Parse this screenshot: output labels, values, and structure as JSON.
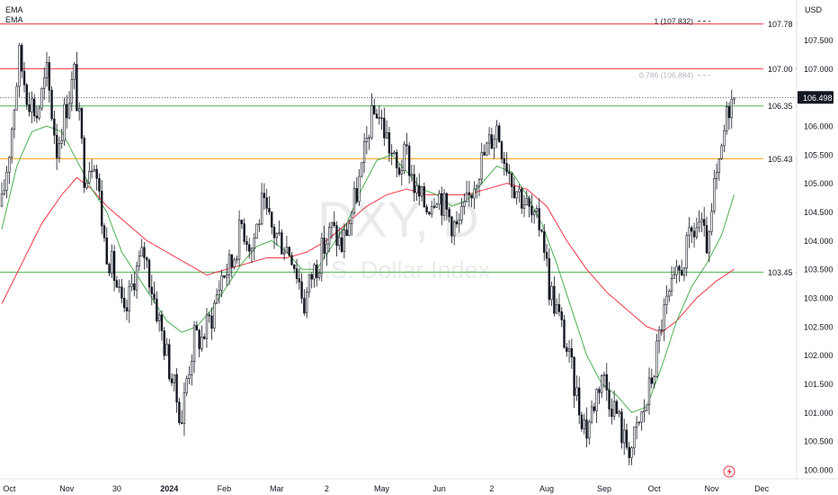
{
  "legend": {
    "ema_fast": "EMA",
    "ema_slow": "EMA"
  },
  "currency": "USD",
  "watermark": {
    "symbol": "DXY, D",
    "name": "U.S. Dollar Index"
  },
  "icon": "lightning-bolt-icon",
  "colors": {
    "candle": "#131722",
    "ema_fast": "#4caf50",
    "ema_slow": "#f23645",
    "red_level": "#f23645",
    "green_level": "#4caf50",
    "orange_level": "#ff9800",
    "fib_text": "#b2b5be",
    "price_tag_bg": "#131722"
  },
  "chart_data": {
    "type": "candlestick",
    "title": "",
    "ylim": [
      99.86,
      108.12
    ],
    "y_ticks": [
      "100.000",
      "100.500",
      "101.000",
      "101.500",
      "102.000",
      "102.500",
      "103.000",
      "103.500",
      "104.000",
      "104.500",
      "105.000",
      "105.500",
      "106.000",
      "106.500",
      "107.000",
      "107.500"
    ],
    "x_ticks": [
      {
        "label": "Oct",
        "idx": 3
      },
      {
        "label": "Nov",
        "idx": 26
      },
      {
        "label": "30",
        "idx": 46
      },
      {
        "label": "2024",
        "idx": 67
      },
      {
        "label": "Feb",
        "idx": 89
      },
      {
        "label": "Mar",
        "idx": 110
      },
      {
        "label": "2",
        "idx": 130
      },
      {
        "label": "May",
        "idx": 152
      },
      {
        "label": "Jun",
        "idx": 175
      },
      {
        "label": "2",
        "idx": 196
      },
      {
        "label": "Aug",
        "idx": 218
      },
      {
        "label": "Sep",
        "idx": 241
      },
      {
        "label": "Oct",
        "idx": 261
      },
      {
        "label": "Nov",
        "idx": 284
      },
      {
        "label": "Dec",
        "idx": 304
      }
    ],
    "last_price": "106.498",
    "levels": [
      {
        "label": "107.78",
        "value": 107.78,
        "color": "red"
      },
      {
        "label": "107.00",
        "value": 107.0,
        "color": "red"
      },
      {
        "label": "106.35",
        "value": 106.35,
        "color": "green"
      },
      {
        "label": "105.43",
        "value": 105.43,
        "color": "orange"
      },
      {
        "label": "103.45",
        "value": 103.45,
        "color": "green"
      }
    ],
    "fib_labels": [
      {
        "text": "1 (107.832)",
        "value": 107.832
      },
      {
        "text": "0.786 (106.884)",
        "value": 106.884
      }
    ],
    "anchors": [
      [
        0,
        104.6
      ],
      [
        3,
        105.6
      ],
      [
        7,
        107.2
      ],
      [
        10,
        106.6
      ],
      [
        14,
        106.2
      ],
      [
        18,
        106.9
      ],
      [
        22,
        105.6
      ],
      [
        25,
        106.2
      ],
      [
        29,
        106.9
      ],
      [
        33,
        105.2
      ],
      [
        37,
        105.5
      ],
      [
        41,
        104.0
      ],
      [
        45,
        103.4
      ],
      [
        49,
        102.6
      ],
      [
        53,
        103.4
      ],
      [
        57,
        103.8
      ],
      [
        61,
        103.0
      ],
      [
        65,
        102.2
      ],
      [
        69,
        101.4
      ],
      [
        72,
        100.9
      ],
      [
        74,
        101.6
      ],
      [
        77,
        102.3
      ],
      [
        80,
        102.3
      ],
      [
        84,
        102.7
      ],
      [
        88,
        103.4
      ],
      [
        92,
        103.6
      ],
      [
        96,
        104.3
      ],
      [
        100,
        103.9
      ],
      [
        104,
        104.6
      ],
      [
        108,
        104.2
      ],
      [
        112,
        104.0
      ],
      [
        116,
        103.8
      ],
      [
        119,
        103.3
      ],
      [
        121,
        102.9
      ],
      [
        124,
        103.4
      ],
      [
        128,
        103.8
      ],
      [
        132,
        104.2
      ],
      [
        136,
        103.9
      ],
      [
        140,
        104.5
      ],
      [
        144,
        105.2
      ],
      [
        147,
        106.0
      ],
      [
        150,
        106.3
      ],
      [
        154,
        105.8
      ],
      [
        158,
        105.2
      ],
      [
        162,
        105.5
      ],
      [
        166,
        104.8
      ],
      [
        170,
        104.6
      ],
      [
        174,
        104.9
      ],
      [
        178,
        104.5
      ],
      [
        182,
        104.2
      ],
      [
        186,
        104.6
      ],
      [
        190,
        105.2
      ],
      [
        194,
        105.6
      ],
      [
        198,
        106.0
      ],
      [
        201,
        105.5
      ],
      [
        205,
        105.0
      ],
      [
        209,
        104.7
      ],
      [
        213,
        104.3
      ],
      [
        216,
        104.3
      ],
      [
        219,
        103.2
      ],
      [
        222,
        102.8
      ],
      [
        225,
        102.3
      ],
      [
        228,
        101.7
      ],
      [
        231,
        101.1
      ],
      [
        234,
        100.7
      ],
      [
        237,
        101.2
      ],
      [
        240,
        101.7
      ],
      [
        243,
        101.3
      ],
      [
        246,
        101.0
      ],
      [
        249,
        100.5
      ],
      [
        252,
        100.4
      ],
      [
        255,
        100.8
      ],
      [
        258,
        101.2
      ],
      [
        261,
        101.8
      ],
      [
        264,
        102.6
      ],
      [
        267,
        103.0
      ],
      [
        270,
        103.3
      ],
      [
        273,
        103.7
      ],
      [
        276,
        104.1
      ],
      [
        279,
        104.3
      ],
      [
        281,
        104.0
      ],
      [
        283,
        103.9
      ],
      [
        285,
        104.9
      ],
      [
        287,
        105.2
      ],
      [
        289,
        105.9
      ],
      [
        291,
        106.4
      ],
      [
        293,
        106.5
      ]
    ],
    "ema_fast_anchors": [
      [
        0,
        104.2
      ],
      [
        6,
        105.3
      ],
      [
        12,
        105.9
      ],
      [
        18,
        106.0
      ],
      [
        24,
        105.9
      ],
      [
        30,
        105.4
      ],
      [
        36,
        104.9
      ],
      [
        42,
        104.5
      ],
      [
        48,
        103.8
      ],
      [
        54,
        103.4
      ],
      [
        60,
        103.0
      ],
      [
        66,
        102.6
      ],
      [
        72,
        102.4
      ],
      [
        78,
        102.5
      ],
      [
        84,
        102.8
      ],
      [
        90,
        103.2
      ],
      [
        96,
        103.6
      ],
      [
        102,
        103.9
      ],
      [
        108,
        104.0
      ],
      [
        114,
        103.8
      ],
      [
        120,
        103.5
      ],
      [
        126,
        103.5
      ],
      [
        132,
        103.9
      ],
      [
        138,
        104.3
      ],
      [
        144,
        104.9
      ],
      [
        150,
        105.4
      ],
      [
        156,
        105.5
      ],
      [
        162,
        105.2
      ],
      [
        168,
        104.9
      ],
      [
        174,
        104.8
      ],
      [
        180,
        104.6
      ],
      [
        186,
        104.7
      ],
      [
        192,
        105.0
      ],
      [
        198,
        105.3
      ],
      [
        204,
        105.2
      ],
      [
        210,
        104.8
      ],
      [
        216,
        104.3
      ],
      [
        222,
        103.6
      ],
      [
        228,
        102.8
      ],
      [
        234,
        102.0
      ],
      [
        240,
        101.5
      ],
      [
        246,
        101.3
      ],
      [
        252,
        101.0
      ],
      [
        258,
        101.1
      ],
      [
        264,
        101.8
      ],
      [
        270,
        102.6
      ],
      [
        276,
        103.2
      ],
      [
        282,
        103.6
      ],
      [
        288,
        104.1
      ],
      [
        293,
        104.8
      ]
    ],
    "ema_slow_anchors": [
      [
        0,
        102.9
      ],
      [
        8,
        103.6
      ],
      [
        16,
        104.3
      ],
      [
        24,
        104.8
      ],
      [
        30,
        105.1
      ],
      [
        36,
        104.9
      ],
      [
        42,
        104.6
      ],
      [
        50,
        104.3
      ],
      [
        58,
        104.0
      ],
      [
        66,
        103.8
      ],
      [
        74,
        103.6
      ],
      [
        82,
        103.4
      ],
      [
        90,
        103.5
      ],
      [
        98,
        103.6
      ],
      [
        106,
        103.7
      ],
      [
        114,
        103.7
      ],
      [
        122,
        103.8
      ],
      [
        130,
        104.0
      ],
      [
        138,
        104.3
      ],
      [
        146,
        104.6
      ],
      [
        154,
        104.8
      ],
      [
        162,
        104.9
      ],
      [
        170,
        104.8
      ],
      [
        178,
        104.8
      ],
      [
        186,
        104.8
      ],
      [
        194,
        104.9
      ],
      [
        202,
        105.0
      ],
      [
        210,
        104.9
      ],
      [
        218,
        104.6
      ],
      [
        226,
        104.0
      ],
      [
        234,
        103.5
      ],
      [
        242,
        103.1
      ],
      [
        250,
        102.8
      ],
      [
        258,
        102.5
      ],
      [
        264,
        102.4
      ],
      [
        270,
        102.6
      ],
      [
        278,
        103.0
      ],
      [
        286,
        103.3
      ],
      [
        293,
        103.5
      ]
    ]
  }
}
